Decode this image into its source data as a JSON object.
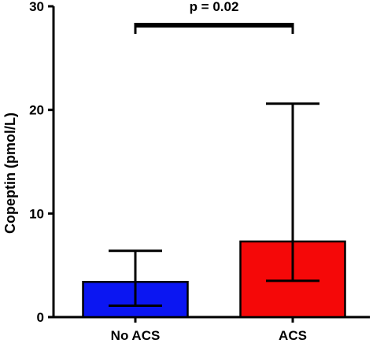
{
  "chart_data": {
    "type": "bar",
    "title": "",
    "xlabel": "",
    "ylabel": "Copeptin (pmol/L)",
    "ylim": [
      0,
      30
    ],
    "yticks": [
      "0",
      "10",
      "20",
      "30"
    ],
    "categories": [
      "No ACS",
      "ACS"
    ],
    "values": [
      3.4,
      7.3
    ],
    "error_low": [
      1.1,
      3.5
    ],
    "error_high": [
      6.4,
      20.6
    ],
    "bar_colors": [
      "#0b16f2",
      "#f50808"
    ],
    "grid": false,
    "annotation": {
      "text": "p = 0.02",
      "between": [
        "No ACS",
        "ACS"
      ]
    }
  }
}
